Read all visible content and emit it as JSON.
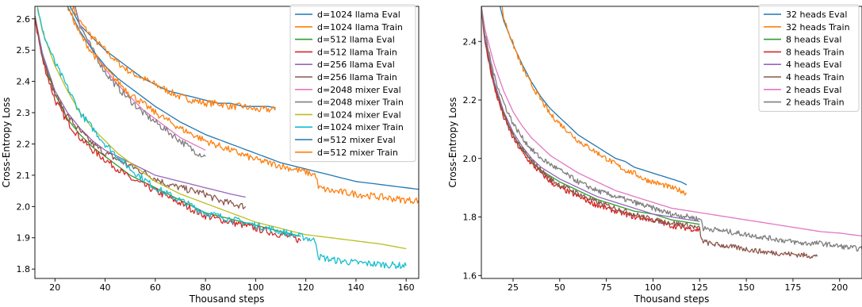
{
  "chart_data": [
    {
      "type": "line",
      "xlabel": "Thousand steps",
      "ylabel": "Cross-Entropy Loss",
      "xlim": [
        12,
        165
      ],
      "ylim": [
        1.77,
        2.64
      ],
      "xticks": [
        20,
        40,
        60,
        80,
        100,
        120,
        140,
        160
      ],
      "yticks": [
        1.8,
        1.9,
        2.0,
        2.1,
        2.2,
        2.3,
        2.4,
        2.5,
        2.6
      ],
      "grid": false,
      "legend_position": "top-right",
      "series": [
        {
          "name": "d=1024 llama Eval",
          "color": "#1f77b4",
          "noisy": false,
          "x": [
            26,
            30,
            35,
            40,
            45,
            50,
            55,
            60,
            65,
            70,
            75,
            80,
            85,
            90,
            95,
            100,
            105,
            108
          ],
          "y": [
            2.64,
            2.58,
            2.54,
            2.5,
            2.47,
            2.44,
            2.41,
            2.39,
            2.37,
            2.36,
            2.35,
            2.34,
            2.33,
            2.33,
            2.32,
            2.32,
            2.32,
            2.315
          ]
        },
        {
          "name": "d=1024 llama Train",
          "color": "#ff7f0e",
          "noisy": true,
          "x": [
            27,
            30,
            35,
            40,
            45,
            50,
            55,
            60,
            65,
            70,
            75,
            80,
            85,
            90,
            95,
            100,
            105,
            108
          ],
          "y": [
            2.64,
            2.59,
            2.54,
            2.5,
            2.46,
            2.43,
            2.41,
            2.39,
            2.37,
            2.35,
            2.34,
            2.33,
            2.33,
            2.32,
            2.32,
            2.31,
            2.31,
            2.31
          ]
        },
        {
          "name": "d=512 llama Eval",
          "color": "#2ca02c",
          "noisy": false,
          "x": [
            12,
            15,
            20,
            25,
            30,
            35,
            40,
            45,
            50,
            55,
            60,
            65,
            70,
            75,
            80,
            85,
            90,
            95,
            100,
            105,
            110,
            115,
            118
          ],
          "y": [
            2.6,
            2.48,
            2.36,
            2.28,
            2.23,
            2.19,
            2.16,
            2.13,
            2.1,
            2.08,
            2.06,
            2.04,
            2.02,
            2.0,
            1.98,
            1.97,
            1.96,
            1.95,
            1.94,
            1.93,
            1.92,
            1.91,
            1.905
          ]
        },
        {
          "name": "d=512 llama Train",
          "color": "#d62728",
          "noisy": true,
          "x": [
            12,
            15,
            20,
            25,
            30,
            35,
            40,
            45,
            50,
            55,
            60,
            65,
            70,
            75,
            80,
            85,
            90,
            95,
            100,
            105,
            110,
            115,
            118
          ],
          "y": [
            2.6,
            2.47,
            2.34,
            2.27,
            2.22,
            2.18,
            2.15,
            2.12,
            2.09,
            2.07,
            2.05,
            2.03,
            2.01,
            1.99,
            1.97,
            1.96,
            1.95,
            1.94,
            1.93,
            1.92,
            1.91,
            1.9,
            1.89
          ]
        },
        {
          "name": "d=256 llama Eval",
          "color": "#9467bd",
          "noisy": false,
          "x": [
            12,
            15,
            20,
            25,
            30,
            35,
            40,
            45,
            50,
            55,
            60,
            65,
            70,
            75,
            80,
            85,
            90,
            96
          ],
          "y": [
            2.61,
            2.49,
            2.37,
            2.3,
            2.25,
            2.21,
            2.18,
            2.16,
            2.14,
            2.12,
            2.1,
            2.09,
            2.08,
            2.07,
            2.06,
            2.05,
            2.04,
            2.03
          ]
        },
        {
          "name": "d=256 llama Train",
          "color": "#8c564b",
          "noisy": true,
          "x": [
            12,
            15,
            20,
            25,
            30,
            35,
            40,
            45,
            50,
            55,
            60,
            65,
            70,
            75,
            80,
            85,
            90,
            96
          ],
          "y": [
            2.61,
            2.48,
            2.36,
            2.29,
            2.24,
            2.2,
            2.17,
            2.15,
            2.13,
            2.11,
            2.09,
            2.07,
            2.06,
            2.05,
            2.04,
            2.02,
            2.01,
            2.0
          ]
        },
        {
          "name": "d=2048 mixer Eval",
          "color": "#e377c2",
          "noisy": false,
          "x": [
            28,
            30,
            35,
            40,
            45,
            50,
            55,
            60,
            65,
            70,
            75,
            80
          ],
          "y": [
            2.64,
            2.58,
            2.5,
            2.44,
            2.39,
            2.35,
            2.31,
            2.28,
            2.25,
            2.22,
            2.2,
            2.18
          ]
        },
        {
          "name": "d=2048 mixer Train",
          "color": "#7f7f7f",
          "noisy": true,
          "x": [
            28,
            30,
            35,
            40,
            45,
            50,
            55,
            60,
            65,
            70,
            75,
            80
          ],
          "y": [
            2.64,
            2.58,
            2.5,
            2.43,
            2.38,
            2.34,
            2.3,
            2.27,
            2.24,
            2.21,
            2.18,
            2.16
          ]
        },
        {
          "name": "d=1024 mixer Eval",
          "color": "#bcbd22",
          "noisy": false,
          "x": [
            13,
            15,
            20,
            25,
            30,
            35,
            40,
            45,
            50,
            55,
            60,
            70,
            80,
            90,
            100,
            110,
            120,
            130,
            140,
            150,
            160
          ],
          "y": [
            2.64,
            2.56,
            2.45,
            2.37,
            2.3,
            2.25,
            2.21,
            2.17,
            2.14,
            2.11,
            2.08,
            2.04,
            2.01,
            1.98,
            1.95,
            1.93,
            1.91,
            1.9,
            1.89,
            1.88,
            1.865
          ]
        },
        {
          "name": "d=1024 mixer Train",
          "color": "#17becf",
          "noisy": true,
          "x": [
            13,
            15,
            20,
            25,
            30,
            35,
            40,
            45,
            50,
            55,
            60,
            70,
            80,
            90,
            100,
            110,
            120,
            124,
            125,
            130,
            140,
            150,
            160
          ],
          "y": [
            2.64,
            2.56,
            2.46,
            2.38,
            2.3,
            2.25,
            2.2,
            2.16,
            2.12,
            2.09,
            2.06,
            2.02,
            1.98,
            1.96,
            1.94,
            1.92,
            1.9,
            1.89,
            1.84,
            1.83,
            1.82,
            1.815,
            1.81
          ]
        },
        {
          "name": "d=512 mixer Eval",
          "color": "#1f77b4",
          "noisy": false,
          "x": [
            25,
            30,
            35,
            40,
            45,
            50,
            60,
            70,
            80,
            90,
            100,
            110,
            120,
            130,
            140,
            150,
            160,
            165
          ],
          "y": [
            2.64,
            2.56,
            2.5,
            2.45,
            2.41,
            2.38,
            2.32,
            2.27,
            2.23,
            2.2,
            2.17,
            2.14,
            2.12,
            2.1,
            2.08,
            2.07,
            2.06,
            2.055
          ]
        },
        {
          "name": "d=512 mixer Train",
          "color": "#ff7f0e",
          "noisy": true,
          "x": [
            25,
            30,
            35,
            40,
            45,
            50,
            60,
            70,
            80,
            90,
            100,
            110,
            120,
            124,
            125,
            130,
            140,
            150,
            160,
            165
          ],
          "y": [
            2.64,
            2.55,
            2.49,
            2.44,
            2.4,
            2.36,
            2.3,
            2.25,
            2.21,
            2.18,
            2.15,
            2.13,
            2.11,
            2.1,
            2.06,
            2.05,
            2.04,
            2.03,
            2.02,
            2.02
          ]
        }
      ]
    },
    {
      "type": "line",
      "xlabel": "Thousand steps",
      "ylabel": "Cross-Entropy Loss",
      "xlim": [
        8,
        212
      ],
      "ylim": [
        1.59,
        2.52
      ],
      "xticks": [
        25,
        50,
        75,
        100,
        125,
        150,
        175,
        200
      ],
      "yticks": [
        1.6,
        1.8,
        2.0,
        2.2,
        2.4
      ],
      "grid": false,
      "legend_position": "top-right",
      "series": [
        {
          "name": "32 heads Eval",
          "color": "#1f77b4",
          "noisy": false,
          "x": [
            18,
            20,
            25,
            30,
            35,
            40,
            45,
            50,
            55,
            60,
            65,
            70,
            75,
            80,
            85,
            90,
            95,
            100,
            105,
            110,
            115,
            118
          ],
          "y": [
            2.52,
            2.47,
            2.39,
            2.32,
            2.26,
            2.21,
            2.17,
            2.14,
            2.11,
            2.08,
            2.06,
            2.04,
            2.02,
            2.0,
            1.99,
            1.97,
            1.96,
            1.95,
            1.94,
            1.93,
            1.92,
            1.91
          ]
        },
        {
          "name": "32 heads Train",
          "color": "#ff7f0e",
          "noisy": true,
          "x": [
            19,
            20,
            25,
            30,
            35,
            40,
            45,
            50,
            55,
            60,
            65,
            70,
            75,
            80,
            85,
            90,
            95,
            100,
            105,
            110,
            115,
            118
          ],
          "y": [
            2.52,
            2.48,
            2.39,
            2.31,
            2.25,
            2.2,
            2.15,
            2.12,
            2.09,
            2.06,
            2.04,
            2.02,
            2.0,
            1.98,
            1.96,
            1.95,
            1.93,
            1.92,
            1.91,
            1.9,
            1.89,
            1.88
          ]
        },
        {
          "name": "8 heads Eval",
          "color": "#2ca02c",
          "noisy": false,
          "x": [
            8,
            10,
            15,
            20,
            25,
            30,
            35,
            40,
            45,
            50,
            60,
            70,
            80,
            90,
            100,
            110,
            120,
            125
          ],
          "y": [
            2.52,
            2.4,
            2.25,
            2.15,
            2.08,
            2.03,
            1.99,
            1.96,
            1.94,
            1.92,
            1.89,
            1.86,
            1.84,
            1.82,
            1.81,
            1.79,
            1.78,
            1.775
          ]
        },
        {
          "name": "8 heads Train",
          "color": "#d62728",
          "noisy": true,
          "x": [
            8,
            10,
            15,
            20,
            25,
            30,
            35,
            40,
            45,
            50,
            60,
            70,
            80,
            90,
            100,
            110,
            120,
            125
          ],
          "y": [
            2.52,
            2.39,
            2.24,
            2.14,
            2.07,
            2.02,
            1.98,
            1.95,
            1.92,
            1.9,
            1.87,
            1.84,
            1.82,
            1.8,
            1.79,
            1.77,
            1.76,
            1.755
          ]
        },
        {
          "name": "4 heads Eval",
          "color": "#9467bd",
          "noisy": false,
          "x": [
            8,
            10,
            15,
            20,
            25,
            30,
            35,
            40,
            45,
            50,
            60,
            70,
            80,
            90,
            100,
            110,
            120,
            125
          ],
          "y": [
            2.52,
            2.41,
            2.26,
            2.16,
            2.09,
            2.04,
            2.0,
            1.97,
            1.95,
            1.93,
            1.9,
            1.87,
            1.85,
            1.83,
            1.81,
            1.8,
            1.79,
            1.785
          ]
        },
        {
          "name": "4 heads Train",
          "color": "#8c564b",
          "noisy": true,
          "x": [
            8,
            10,
            15,
            20,
            25,
            30,
            35,
            40,
            45,
            50,
            60,
            70,
            80,
            90,
            100,
            110,
            120,
            125,
            126,
            130,
            140,
            150,
            160,
            170,
            180,
            188
          ],
          "y": [
            2.52,
            2.4,
            2.25,
            2.15,
            2.08,
            2.03,
            1.99,
            1.96,
            1.93,
            1.91,
            1.88,
            1.85,
            1.83,
            1.81,
            1.79,
            1.78,
            1.77,
            1.76,
            1.72,
            1.71,
            1.7,
            1.69,
            1.68,
            1.675,
            1.67,
            1.665
          ]
        },
        {
          "name": "2 heads Eval",
          "color": "#e377c2",
          "noisy": false,
          "x": [
            8,
            10,
            15,
            20,
            25,
            30,
            35,
            40,
            45,
            50,
            60,
            70,
            80,
            90,
            100,
            110,
            120,
            130,
            140,
            150,
            160,
            170,
            180,
            190,
            200,
            212
          ],
          "y": [
            2.52,
            2.44,
            2.32,
            2.23,
            2.16,
            2.11,
            2.07,
            2.04,
            2.01,
            1.99,
            1.95,
            1.92,
            1.89,
            1.87,
            1.85,
            1.83,
            1.82,
            1.81,
            1.8,
            1.79,
            1.78,
            1.77,
            1.76,
            1.75,
            1.745,
            1.735
          ]
        },
        {
          "name": "2 heads Train",
          "color": "#7f7f7f",
          "noisy": true,
          "x": [
            8,
            10,
            15,
            20,
            25,
            30,
            35,
            40,
            45,
            50,
            60,
            70,
            80,
            90,
            100,
            110,
            120,
            126,
            127,
            130,
            140,
            150,
            160,
            170,
            180,
            190,
            200,
            212
          ],
          "y": [
            2.52,
            2.42,
            2.28,
            2.19,
            2.12,
            2.07,
            2.03,
            2.0,
            1.98,
            1.96,
            1.92,
            1.89,
            1.87,
            1.85,
            1.83,
            1.81,
            1.8,
            1.79,
            1.76,
            1.76,
            1.75,
            1.74,
            1.73,
            1.72,
            1.71,
            1.71,
            1.7,
            1.69
          ]
        }
      ]
    }
  ]
}
